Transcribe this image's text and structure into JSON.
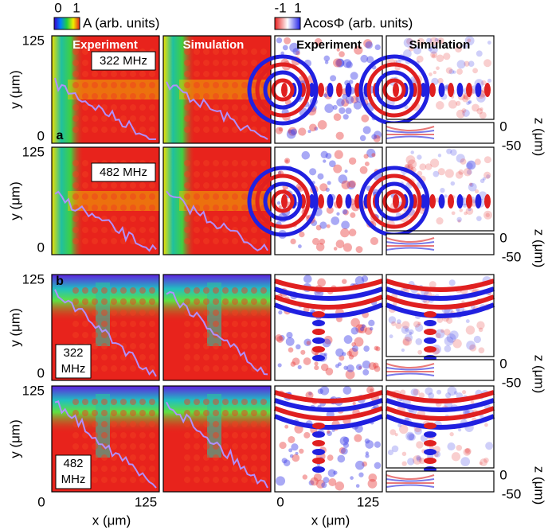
{
  "colorbars": [
    {
      "min": 0,
      "max": 1,
      "label": "A (arb. units)"
    },
    {
      "min": -1,
      "max": 1,
      "label": "AcosΦ (arb. units)"
    }
  ],
  "column_titles": [
    "Experiment",
    "Simulation",
    "Experiment",
    "Simulation"
  ],
  "panel_labels": [
    "a",
    "b"
  ],
  "frequencies": {
    "a": [
      "322 MHz",
      "482 MHz"
    ],
    "b": [
      [
        "322",
        "MHz"
      ],
      [
        "482",
        "MHz"
      ]
    ]
  },
  "y_axis": {
    "label": "y (μm)",
    "ticks": [
      125,
      0
    ]
  },
  "z_axis": {
    "label": "z (μm)",
    "ticks": [
      0,
      -50
    ]
  },
  "x_axis": {
    "label": "x (μm)",
    "ticks": [
      0,
      125
    ]
  }
}
